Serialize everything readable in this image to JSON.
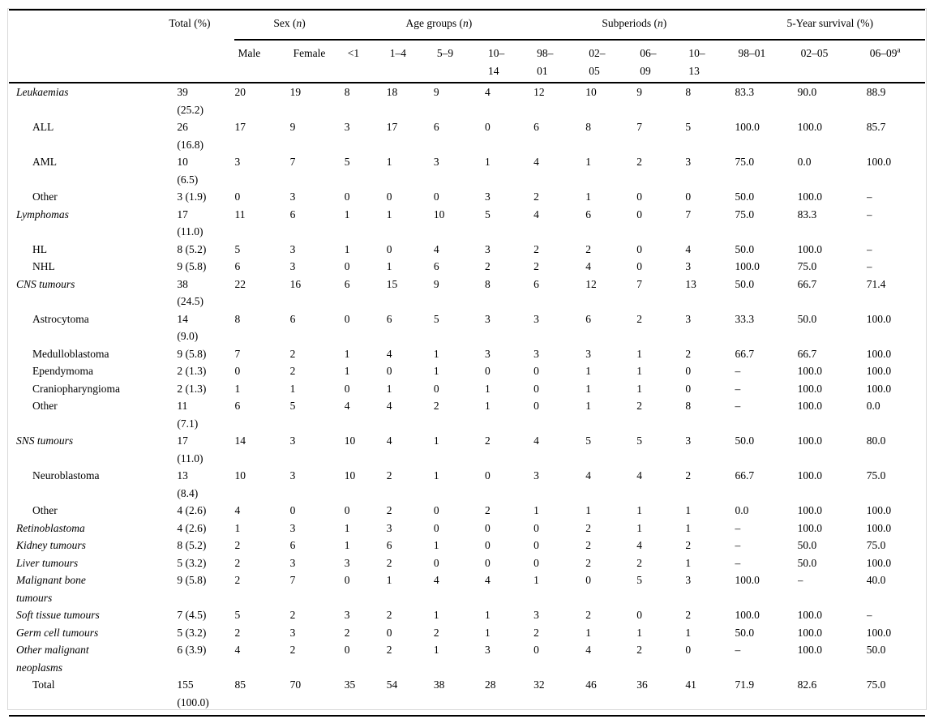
{
  "colors": {
    "background": "#ffffff",
    "text": "#000000",
    "rule": "#000000",
    "frame": "#d9d9d9"
  },
  "table": {
    "total_header": "Total (%)",
    "groups": [
      {
        "pre": "Sex (",
        "italic": "n",
        "post": ")",
        "span": 2
      },
      {
        "pre": "Age groups (",
        "italic": "n",
        "post": ")",
        "span": 4
      },
      {
        "pre": "Subperiods (",
        "italic": "n",
        "post": ")",
        "span": 4
      },
      {
        "pre": "5-Year survival (%)",
        "italic": "",
        "post": "",
        "span": 3
      }
    ],
    "columns": [
      {
        "label": "Male"
      },
      {
        "label": "Female"
      },
      {
        "label": "<1"
      },
      {
        "label": "1–4"
      },
      {
        "label": "5–9"
      },
      {
        "label": "10–\n14"
      },
      {
        "label": "98–\n01"
      },
      {
        "label": "02–\n05"
      },
      {
        "label": "06–\n09"
      },
      {
        "label": "10–\n13"
      },
      {
        "label": "98–01"
      },
      {
        "label": "02–05"
      },
      {
        "label": "06–09",
        "sup": "a"
      }
    ],
    "rows": [
      {
        "label": "Leukaemias",
        "italic": true,
        "indent": false,
        "total": "39\n(25.2)",
        "values": [
          "20",
          "19",
          "8",
          "18",
          "9",
          "4",
          "12",
          "10",
          "9",
          "8",
          "83.3",
          "90.0",
          "88.9"
        ]
      },
      {
        "label": "ALL",
        "italic": false,
        "indent": true,
        "total": "26\n(16.8)",
        "values": [
          "17",
          "9",
          "3",
          "17",
          "6",
          "0",
          "6",
          "8",
          "7",
          "5",
          "100.0",
          "100.0",
          "85.7"
        ]
      },
      {
        "label": "AML",
        "italic": false,
        "indent": true,
        "total": "10\n(6.5)",
        "values": [
          "3",
          "7",
          "5",
          "1",
          "3",
          "1",
          "4",
          "1",
          "2",
          "3",
          "75.0",
          "0.0",
          "100.0"
        ]
      },
      {
        "label": "Other",
        "italic": false,
        "indent": true,
        "total": "3 (1.9)",
        "values": [
          "0",
          "3",
          "0",
          "0",
          "0",
          "3",
          "2",
          "1",
          "0",
          "0",
          "50.0",
          "100.0",
          "–"
        ]
      },
      {
        "label": "Lymphomas",
        "italic": true,
        "indent": false,
        "total": "17\n(11.0)",
        "values": [
          "11",
          "6",
          "1",
          "1",
          "10",
          "5",
          "4",
          "6",
          "0",
          "7",
          "75.0",
          "83.3",
          "–"
        ]
      },
      {
        "label": "HL",
        "italic": false,
        "indent": true,
        "total": "8 (5.2)",
        "values": [
          "5",
          "3",
          "1",
          "0",
          "4",
          "3",
          "2",
          "2",
          "0",
          "4",
          "50.0",
          "100.0",
          "–"
        ]
      },
      {
        "label": "NHL",
        "italic": false,
        "indent": true,
        "total": "9 (5.8)",
        "values": [
          "6",
          "3",
          "0",
          "1",
          "6",
          "2",
          "2",
          "4",
          "0",
          "3",
          "100.0",
          "75.0",
          "–"
        ]
      },
      {
        "label": "CNS tumours",
        "italic": true,
        "indent": false,
        "total": "38\n(24.5)",
        "values": [
          "22",
          "16",
          "6",
          "15",
          "9",
          "8",
          "6",
          "12",
          "7",
          "13",
          "50.0",
          "66.7",
          "71.4"
        ]
      },
      {
        "label": "Astrocytoma",
        "italic": false,
        "indent": true,
        "total": "14\n(9.0)",
        "values": [
          "8",
          "6",
          "0",
          "6",
          "5",
          "3",
          "3",
          "6",
          "2",
          "3",
          "33.3",
          "50.0",
          "100.0"
        ]
      },
      {
        "label": "Medulloblastoma",
        "italic": false,
        "indent": true,
        "total": "9 (5.8)",
        "values": [
          "7",
          "2",
          "1",
          "4",
          "1",
          "3",
          "3",
          "3",
          "1",
          "2",
          "66.7",
          "66.7",
          "100.0"
        ]
      },
      {
        "label": "Ependymoma",
        "italic": false,
        "indent": true,
        "total": "2 (1.3)",
        "values": [
          "0",
          "2",
          "1",
          "0",
          "1",
          "0",
          "0",
          "1",
          "1",
          "0",
          "–",
          "100.0",
          "100.0"
        ]
      },
      {
        "label": "Craniopharyngioma",
        "italic": false,
        "indent": true,
        "total": "2 (1.3)",
        "values": [
          "1",
          "1",
          "0",
          "1",
          "0",
          "1",
          "0",
          "1",
          "1",
          "0",
          "–",
          "100.0",
          "100.0"
        ]
      },
      {
        "label": "Other",
        "italic": false,
        "indent": true,
        "total": "11\n(7.1)",
        "values": [
          "6",
          "5",
          "4",
          "4",
          "2",
          "1",
          "0",
          "1",
          "2",
          "8",
          "–",
          "100.0",
          "0.0"
        ]
      },
      {
        "label": "SNS tumours",
        "italic": true,
        "indent": false,
        "total": "17\n(11.0)",
        "values": [
          "14",
          "3",
          "10",
          "4",
          "1",
          "2",
          "4",
          "5",
          "5",
          "3",
          "50.0",
          "100.0",
          "80.0"
        ]
      },
      {
        "label": "Neuroblastoma",
        "italic": false,
        "indent": true,
        "total": "13\n(8.4)",
        "values": [
          "10",
          "3",
          "10",
          "2",
          "1",
          "0",
          "3",
          "4",
          "4",
          "2",
          "66.7",
          "100.0",
          "75.0"
        ]
      },
      {
        "label": "Other",
        "italic": false,
        "indent": true,
        "total": "4 (2.6)",
        "values": [
          "4",
          "0",
          "0",
          "2",
          "0",
          "2",
          "1",
          "1",
          "1",
          "1",
          "0.0",
          "100.0",
          "100.0"
        ]
      },
      {
        "label": "Retinoblastoma",
        "italic": true,
        "indent": false,
        "total": "4 (2.6)",
        "values": [
          "1",
          "3",
          "1",
          "3",
          "0",
          "0",
          "0",
          "2",
          "1",
          "1",
          "–",
          "100.0",
          "100.0"
        ]
      },
      {
        "label": "Kidney tumours",
        "italic": true,
        "indent": false,
        "total": "8 (5.2)",
        "values": [
          "2",
          "6",
          "1",
          "6",
          "1",
          "0",
          "0",
          "2",
          "4",
          "2",
          "–",
          "50.0",
          "75.0"
        ]
      },
      {
        "label": "Liver tumours",
        "italic": true,
        "indent": false,
        "total": "5 (3.2)",
        "values": [
          "2",
          "3",
          "3",
          "2",
          "0",
          "0",
          "0",
          "2",
          "2",
          "1",
          "–",
          "50.0",
          "100.0"
        ]
      },
      {
        "label": "Malignant bone\ntumours",
        "italic": true,
        "indent": false,
        "total": "9 (5.8)",
        "values": [
          "2",
          "7",
          "0",
          "1",
          "4",
          "4",
          "1",
          "0",
          "5",
          "3",
          "100.0",
          "–",
          "40.0"
        ]
      },
      {
        "label": "Soft tissue tumours",
        "italic": true,
        "indent": false,
        "total": "7 (4.5)",
        "values": [
          "5",
          "2",
          "3",
          "2",
          "1",
          "1",
          "3",
          "2",
          "0",
          "2",
          "100.0",
          "100.0",
          "–"
        ]
      },
      {
        "label": "Germ cell tumours",
        "italic": true,
        "indent": false,
        "total": "5 (3.2)",
        "values": [
          "2",
          "3",
          "2",
          "0",
          "2",
          "1",
          "2",
          "1",
          "1",
          "1",
          "50.0",
          "100.0",
          "100.0"
        ]
      },
      {
        "label": "Other malignant\nneoplasms",
        "italic": true,
        "indent": false,
        "total": "6 (3.9)",
        "values": [
          "4",
          "2",
          "0",
          "2",
          "1",
          "3",
          "0",
          "4",
          "2",
          "0",
          "–",
          "100.0",
          "50.0"
        ]
      },
      {
        "label": "Total",
        "italic": false,
        "indent": true,
        "total": "155\n(100.0)",
        "values": [
          "85",
          "70",
          "35",
          "54",
          "38",
          "28",
          "32",
          "46",
          "36",
          "41",
          "71.9",
          "82.6",
          "75.0"
        ]
      }
    ]
  }
}
